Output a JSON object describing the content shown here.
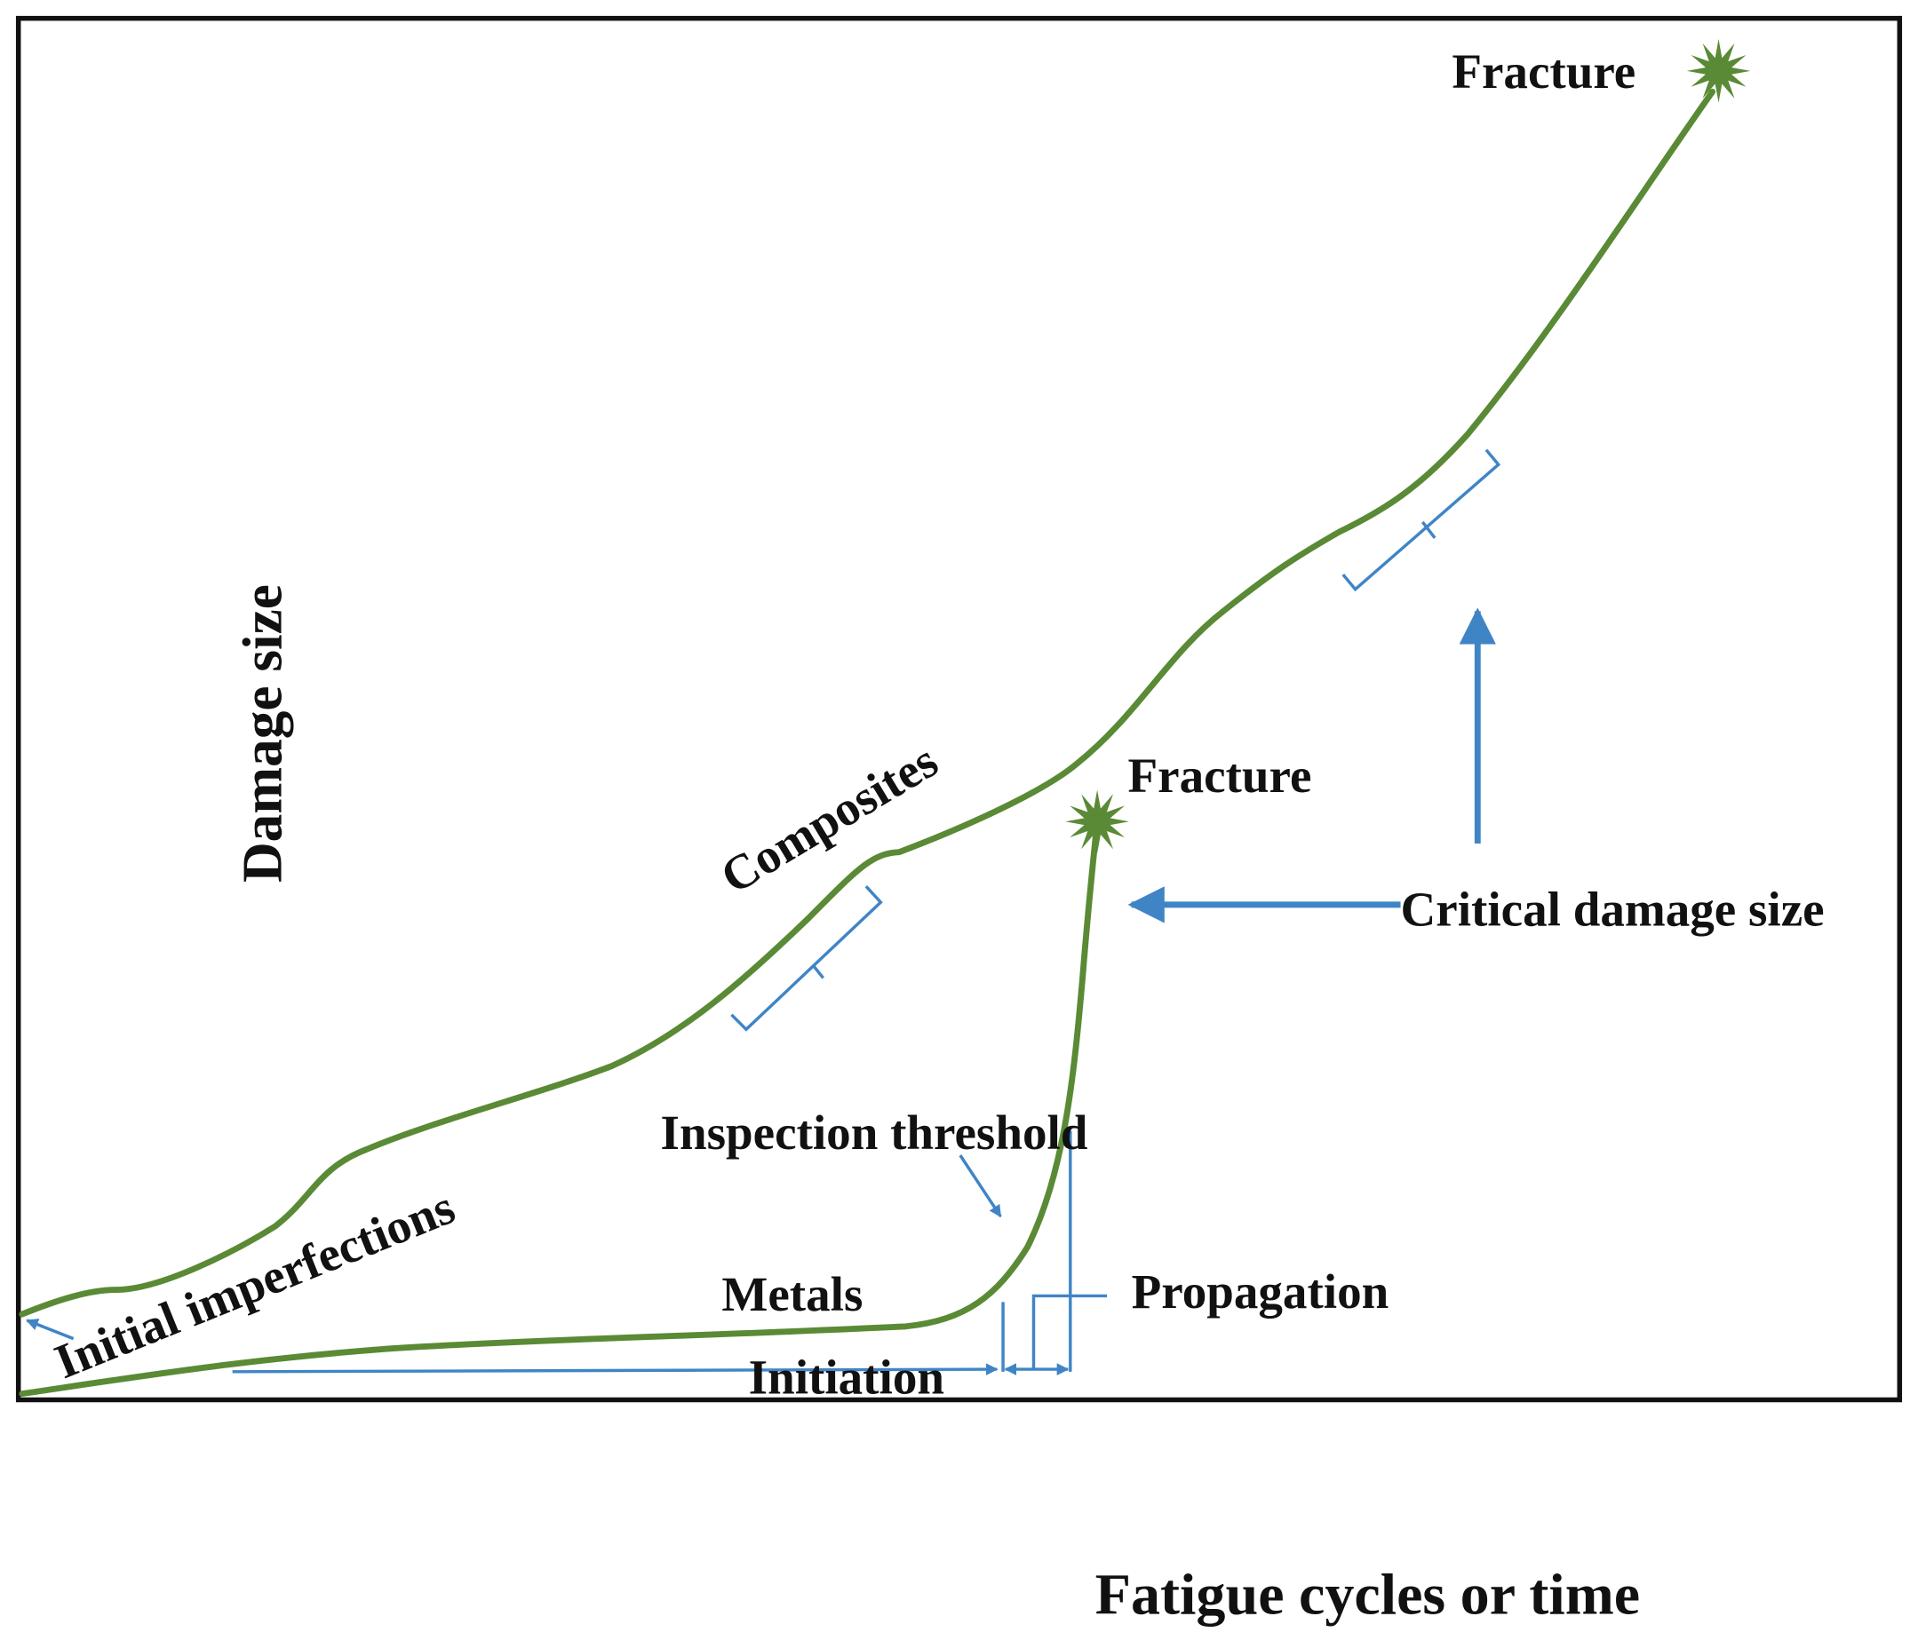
{
  "axes": {
    "y_label": "Damage size",
    "x_label": "Fatigue cycles or time"
  },
  "labels": {
    "fracture_top": "Fracture",
    "fracture_mid": "Fracture",
    "critical": "Critical damage size",
    "composites": "Composites",
    "initial": "Initial imperfections",
    "inspection": "Inspection threshold",
    "metals": "Metals",
    "propagation": "Propagation",
    "initiation": "Initiation"
  }
}
